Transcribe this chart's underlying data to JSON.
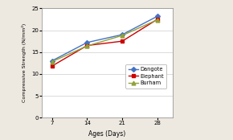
{
  "x": [
    7,
    14,
    21,
    28
  ],
  "dangote": [
    13.0,
    17.2,
    19.0,
    23.2
  ],
  "elephant": [
    11.8,
    16.5,
    17.5,
    22.5
  ],
  "burham": [
    12.8,
    16.4,
    18.8,
    22.4
  ],
  "dangote_color": "#4472C4",
  "elephant_color": "#CC0000",
  "burham_color": "#93A138",
  "xlabel": "Ages (Days)",
  "ylabel": "Compressive Strength (N/mm²)",
  "ylim": [
    0,
    25
  ],
  "xlim": [
    5,
    31
  ],
  "yticks": [
    0,
    5,
    10,
    15,
    20,
    25
  ],
  "xticks": [
    7,
    14,
    21,
    28
  ],
  "legend_labels": [
    "Dangote",
    "Elephant",
    "Burham"
  ],
  "bg_color": "#ede8e0",
  "plot_bg": "#ffffff"
}
